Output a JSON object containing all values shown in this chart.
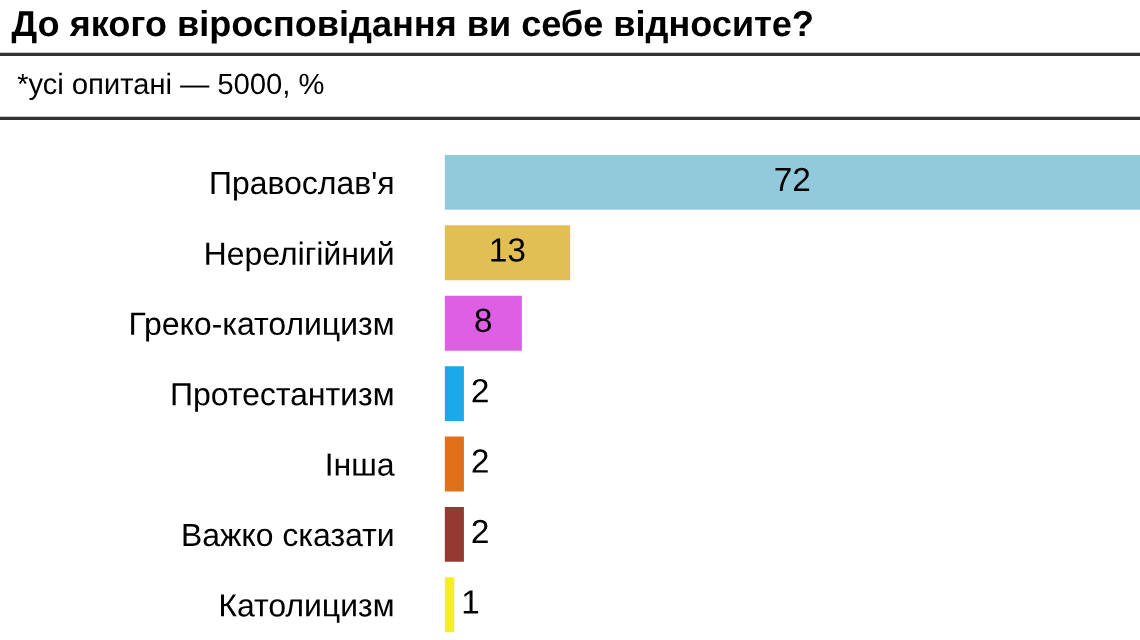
{
  "chart_data": {
    "type": "bar",
    "orientation": "horizontal",
    "title": "До якого віросповідання ви себе відносите?",
    "subtitle": "*усі опитані — 5000, %",
    "categories": [
      "Православ'я",
      "Нерелігійний",
      "Греко-католицизм",
      "Протестантизм",
      "Інша",
      "Важко сказати",
      "Католицизм"
    ],
    "values": [
      72,
      13,
      8,
      2,
      2,
      2,
      1
    ],
    "colors": [
      "#92cadc",
      "#e2bf55",
      "#dd5fe3",
      "#1ba9ea",
      "#e0711b",
      "#943a33",
      "#f5ee22"
    ],
    "data_labels": true,
    "tick_labels": "y",
    "grid": false,
    "legend": false
  }
}
